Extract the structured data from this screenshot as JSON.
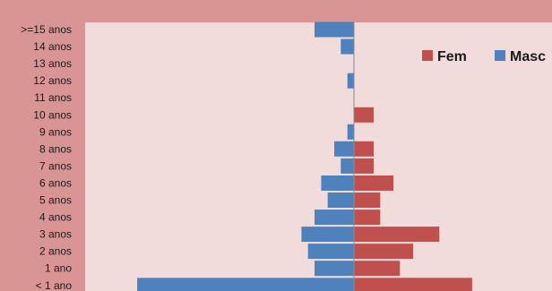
{
  "chart_data": {
    "type": "bar",
    "orientation": "horizontal",
    "categories": [
      "< 1 ano",
      "1 ano",
      "2 anos",
      "3 anos",
      "4 anos",
      "5 anos",
      "6 anos",
      "7 anos",
      "8 anos",
      "9 anos",
      "10 anos",
      "11 anos",
      "12 anos",
      "13 anos",
      "14 anos",
      ">=15 anos"
    ],
    "series": [
      {
        "name": "Fem",
        "color": "#c0504d",
        "values": [
          18,
          7,
          9,
          13,
          4,
          4,
          6,
          3,
          3,
          0,
          3,
          0,
          0,
          0,
          0,
          0
        ]
      },
      {
        "name": "Masc",
        "color": "#4f81bd",
        "values": [
          -33,
          -6,
          -7,
          -8,
          -6,
          -4,
          -5,
          -2,
          -3,
          -1,
          0,
          0,
          -1,
          0,
          -2,
          -6
        ]
      }
    ],
    "legend_position": "top-right",
    "grid": false,
    "plot_background": "#f2dcdb",
    "page_background": "#d99594"
  }
}
